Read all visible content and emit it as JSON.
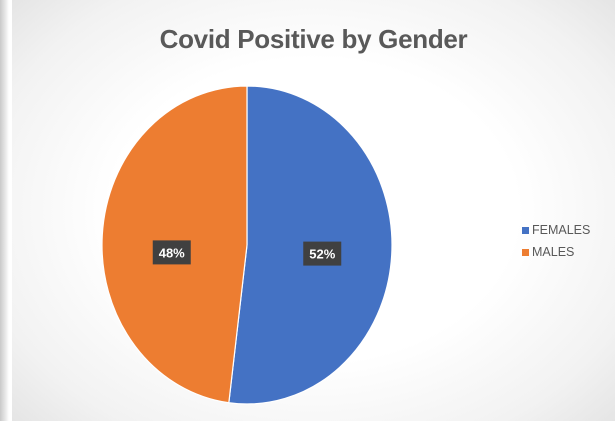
{
  "chart_data": {
    "type": "pie",
    "title": "Covid Positive by Gender",
    "slices": [
      {
        "name": "FEMALES",
        "value": 52,
        "label": "52%",
        "color": "#4472c4"
      },
      {
        "name": "MALES",
        "value": 48,
        "label": "48%",
        "color": "#ed7d31"
      }
    ],
    "legend_position": "right",
    "data_label_background": "#404040",
    "data_label_color": "#ffffff"
  }
}
